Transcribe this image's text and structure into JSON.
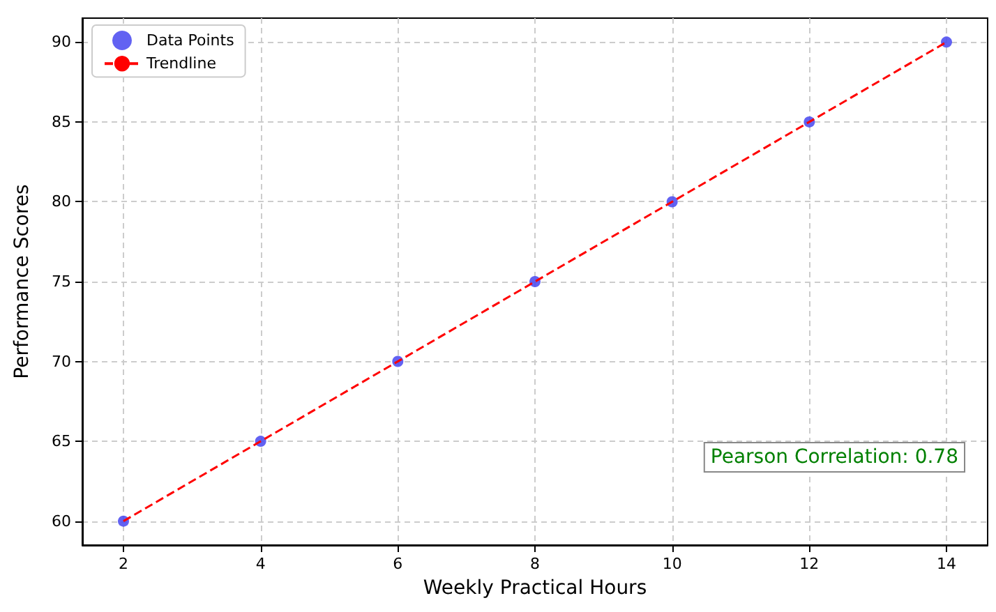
{
  "chart_data": {
    "type": "scatter",
    "xlabel": "Weekly Practical Hours",
    "ylabel": "Performance Scores",
    "x": [
      2,
      4,
      6,
      8,
      10,
      12,
      14
    ],
    "series": [
      {
        "name": "Data Points",
        "color": "#4646f0",
        "values": [
          60,
          65,
          70,
          75,
          80,
          85,
          90
        ],
        "marker": "circle"
      },
      {
        "name": "Trendline",
        "type": "line",
        "color": "#ff0000",
        "x": [
          2,
          14
        ],
        "values": [
          60,
          90
        ],
        "marker": "none",
        "line_style": "dashed"
      }
    ],
    "xlim": [
      1.4,
      14.6
    ],
    "xticks": [
      2,
      4,
      6,
      8,
      10,
      12,
      14
    ],
    "ylim": [
      58.5,
      91.5
    ],
    "yticks": [
      60,
      65,
      70,
      75,
      80,
      85,
      90
    ],
    "grid": true,
    "legend": "top left",
    "annotations": [
      "Pearson Correlation: 0.78"
    ]
  }
}
